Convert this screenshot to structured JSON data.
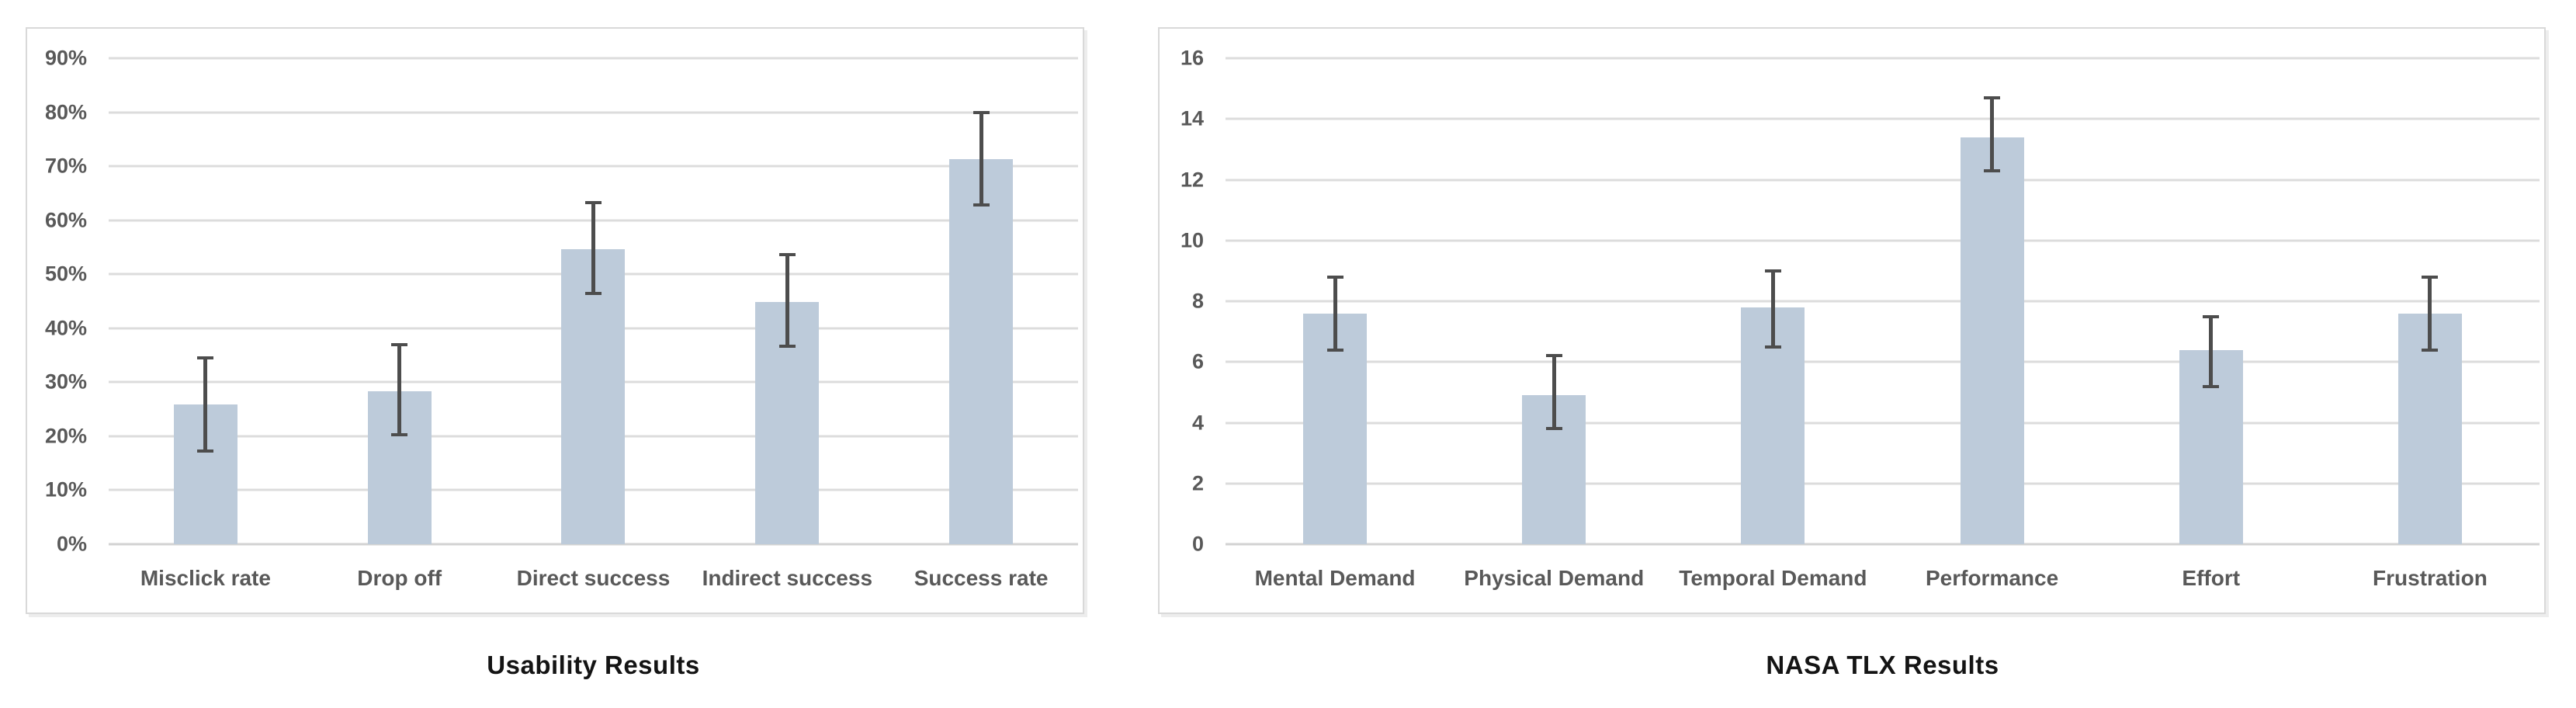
{
  "chart_data": [
    {
      "type": "bar",
      "title": "Usability Results",
      "categories": [
        "Misclick rate",
        "Drop off",
        "Direct success",
        "Indirect success",
        "Success rate"
      ],
      "values": [
        25.9,
        28.3,
        54.6,
        44.9,
        71.3
      ],
      "error_low": [
        17.3,
        20.3,
        46.4,
        36.6,
        62.9
      ],
      "error_high": [
        34.5,
        37.0,
        63.3,
        53.7,
        79.9
      ],
      "ylim": [
        0,
        90
      ],
      "ytick_step": 10,
      "ytick_labels": [
        "0%",
        "10%",
        "20%",
        "30%",
        "40%",
        "50%",
        "60%",
        "70%",
        "80%",
        "90%"
      ],
      "xlabel": "",
      "ylabel": "",
      "grid": true,
      "legend": "none",
      "error_bars": true,
      "bar_color": "#BDCBDA",
      "error_color": "#4D4D4D",
      "grid_color": "#DCDCDC",
      "zero_line_color": "#D2D2D2",
      "axis_text_color": "#595959",
      "title_color": "#141414"
    },
    {
      "type": "bar",
      "title": "NASA TLX Results",
      "categories": [
        "Mental Demand",
        "Physical Demand",
        "Temporal Demand",
        "Performance",
        "Effort",
        "Frustration"
      ],
      "values": [
        7.6,
        4.9,
        7.8,
        13.4,
        6.4,
        7.6
      ],
      "error_low": [
        6.4,
        3.8,
        6.5,
        12.3,
        5.2,
        6.4
      ],
      "error_high": [
        8.8,
        6.2,
        9.0,
        14.7,
        7.5,
        8.8
      ],
      "ylim": [
        0,
        16
      ],
      "ytick_step": 2,
      "ytick_labels": [
        "0",
        "2",
        "4",
        "6",
        "8",
        "10",
        "12",
        "14",
        "16"
      ],
      "xlabel": "",
      "ylabel": "",
      "grid": true,
      "legend": "none",
      "error_bars": true,
      "bar_color": "#BDCBDA",
      "error_color": "#4D4D4D",
      "grid_color": "#DCDCDC",
      "zero_line_color": "#D2D2D2",
      "axis_text_color": "#595959",
      "title_color": "#141414"
    }
  ]
}
